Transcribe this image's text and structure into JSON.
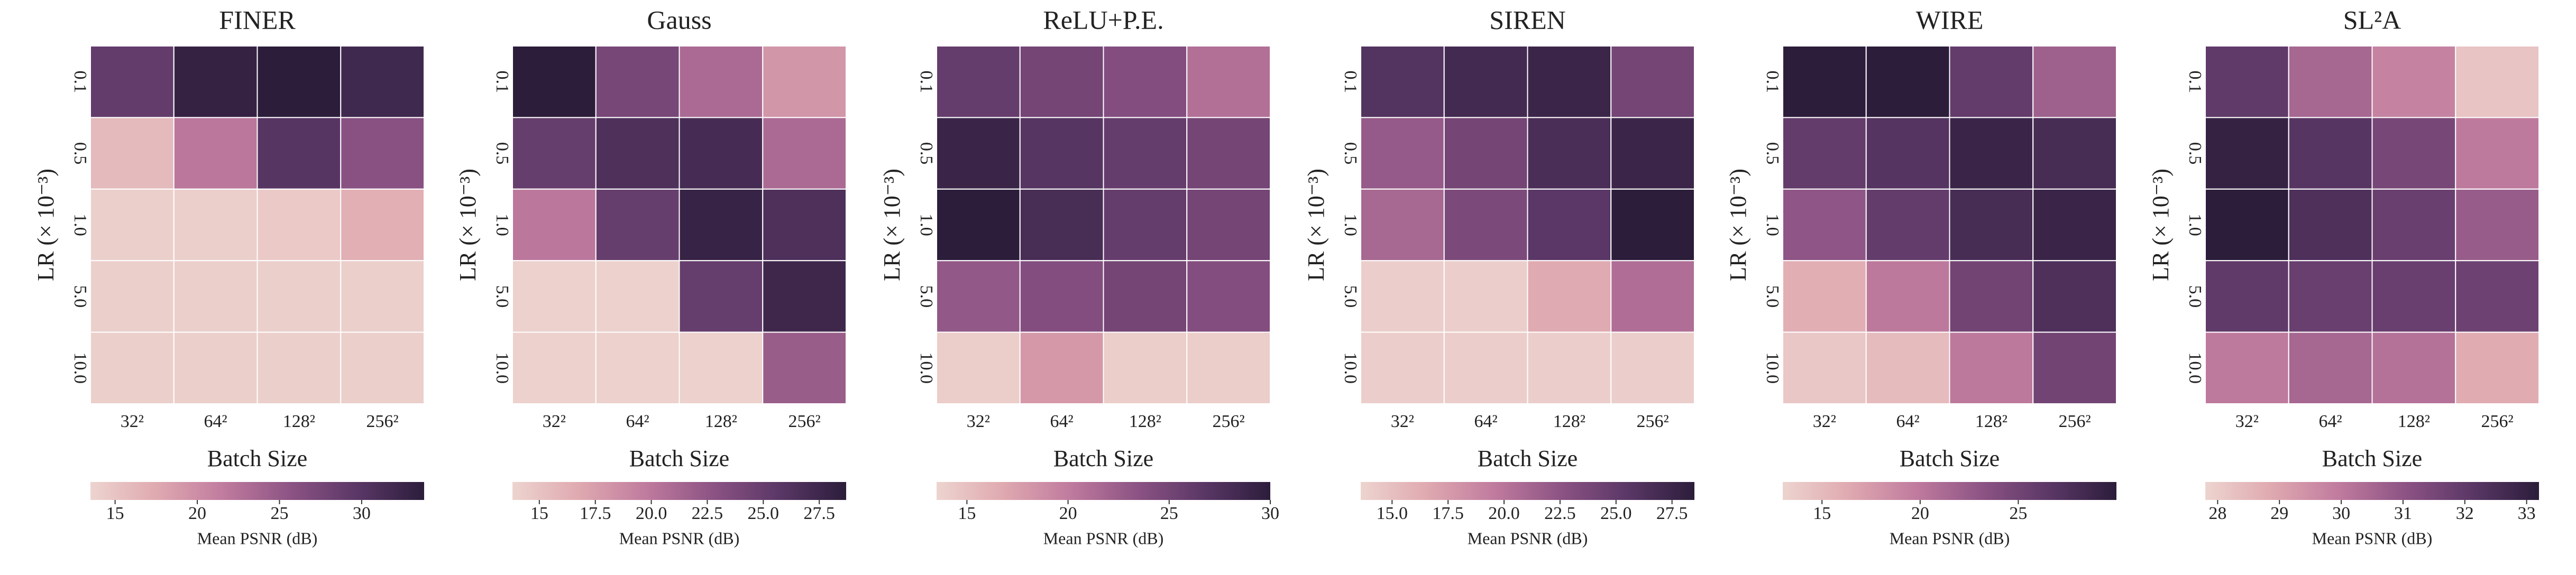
{
  "chart_data": [
    {
      "type": "heatmap",
      "title": "FINER",
      "xlabel": "Batch Size",
      "ylabel": "LR (× 10⁻³)",
      "x": [
        "32²",
        "64²",
        "128²",
        "256²"
      ],
      "y": [
        "0.1",
        "0.5",
        "1.0",
        "5.0",
        "10.0"
      ],
      "values": [
        [
          29,
          33,
          34,
          32
        ],
        [
          16,
          22,
          30,
          26
        ],
        [
          14,
          14,
          14.5,
          17
        ],
        [
          14,
          14,
          14,
          14
        ],
        [
          14,
          14,
          14,
          14
        ]
      ],
      "colorbar_label": "Mean PSNR (dB)",
      "clim": [
        13.5,
        33.8
      ],
      "cticks": [
        15,
        20,
        25,
        30
      ],
      "colormap": [
        "#edd4cf",
        "#dfa9b0",
        "#c07b9e",
        "#8c5384",
        "#5a3766",
        "#2c1d3b"
      ]
    },
    {
      "type": "heatmap",
      "title": "Gauss",
      "xlabel": "Batch Size",
      "ylabel": "LR (× 10⁻³)",
      "x": [
        "32²",
        "64²",
        "128²",
        "256²"
      ],
      "y": [
        "0.1",
        "0.5",
        "1.0",
        "5.0",
        "10.0"
      ],
      "values": [
        [
          28.7,
          24,
          21,
          18
        ],
        [
          25,
          26.5,
          27,
          21
        ],
        [
          20,
          25,
          28,
          26.5
        ],
        [
          14,
          14,
          25,
          27.5
        ],
        [
          14,
          14,
          14,
          22
        ]
      ],
      "colorbar_label": "Mean PSNR (dB)",
      "clim": [
        13.8,
        28.7
      ],
      "cticks": [
        15.0,
        {
          "value": 17.5,
          "label": "17.5"
        },
        {
          "value": 20,
          "label": "20.0"
        },
        {
          "value": 22.5,
          "label": "22.5"
        },
        {
          "value": 25,
          "label": "25.0"
        },
        {
          "value": 27.5,
          "label": "27.5"
        }
      ],
      "colormap": [
        "#edd4cf",
        "#dfa9b0",
        "#c07b9e",
        "#8c5384",
        "#5a3766",
        "#2c1d3b"
      ]
    },
    {
      "type": "heatmap",
      "title": "ReLU+P.E.",
      "xlabel": "Batch Size",
      "ylabel": "LR (× 10⁻³)",
      "x": [
        "32²",
        "64²",
        "128²",
        "256²"
      ],
      "y": [
        "0.1",
        "0.5",
        "1.0",
        "5.0",
        "10.0"
      ],
      "values": [
        [
          26,
          25,
          24,
          21
        ],
        [
          29,
          27,
          26,
          25
        ],
        [
          30,
          28,
          26,
          25
        ],
        [
          23,
          24,
          25,
          24
        ],
        [
          14,
          18,
          14,
          14
        ]
      ],
      "colorbar_label": "Mean PSNR (dB)",
      "clim": [
        13.5,
        30
      ],
      "cticks": [
        15,
        20,
        25,
        30
      ],
      "colormap": [
        "#edd4cf",
        "#dfa9b0",
        "#c07b9e",
        "#8c5384",
        "#5a3766",
        "#2c1d3b"
      ]
    },
    {
      "type": "heatmap",
      "title": "SIREN",
      "xlabel": "Batch Size",
      "ylabel": "LR (× 10⁻³)",
      "x": [
        "32²",
        "64²",
        "128²",
        "256²"
      ],
      "y": [
        "0.1",
        "0.5",
        "1.0",
        "5.0",
        "10.0"
      ],
      "values": [
        [
          26,
          27,
          27.5,
          24
        ],
        [
          22,
          24,
          26.5,
          27.5
        ],
        [
          21,
          23.5,
          25.5,
          28.5
        ],
        [
          14,
          14,
          16.5,
          20.5
        ],
        [
          14,
          14,
          14,
          14
        ]
      ],
      "colorbar_label": "Mean PSNR (dB)",
      "clim": [
        13.6,
        28.5
      ],
      "cticks": [
        {
          "value": 15,
          "label": "15.0"
        },
        17.5,
        {
          "value": 20,
          "label": "20.0"
        },
        22.5,
        {
          "value": 25,
          "label": "25.0"
        },
        27.5
      ],
      "colormap": [
        "#edd4cf",
        "#dfa9b0",
        "#c07b9e",
        "#8c5384",
        "#5a3766",
        "#2c1d3b"
      ]
    },
    {
      "type": "heatmap",
      "title": "WIRE",
      "xlabel": "Batch Size",
      "ylabel": "LR (× 10⁻³)",
      "x": [
        "32²",
        "64²",
        "128²",
        "256²"
      ],
      "y": [
        "0.1",
        "0.5",
        "1.0",
        "5.0",
        "10.0"
      ],
      "values": [
        [
          30,
          30,
          26,
          22
        ],
        [
          26,
          27,
          29,
          28
        ],
        [
          23,
          26,
          28,
          29
        ],
        [
          16,
          20,
          25,
          27.5
        ],
        [
          14,
          15,
          20,
          25
        ]
      ],
      "colorbar_label": "Mean PSNR (dB)",
      "clim": [
        13,
        30
      ],
      "cticks": [
        15,
        20,
        25
      ],
      "colormap": [
        "#edd4cf",
        "#dfa9b0",
        "#c07b9e",
        "#8c5384",
        "#5a3766",
        "#2c1d3b"
      ]
    },
    {
      "type": "heatmap",
      "title": "SL²A",
      "xlabel": "Batch Size",
      "ylabel": "LR (× 10⁻³)",
      "x": [
        "32²",
        "64²",
        "128²",
        "256²"
      ],
      "y": [
        "0.1",
        "0.5",
        "1.0",
        "5.0",
        "10.0"
      ],
      "values": [
        [
          32,
          30.5,
          29.8,
          28.2
        ],
        [
          33,
          32.2,
          31.5,
          30
        ],
        [
          33.2,
          32.4,
          31.8,
          30.8
        ],
        [
          32,
          31.8,
          31.8,
          31.7
        ],
        [
          30,
          30.5,
          30.2,
          28.8
        ]
      ],
      "colorbar_label": "Mean PSNR (dB)",
      "clim": [
        27.8,
        33.2
      ],
      "cticks": [
        28,
        29,
        30,
        31,
        32,
        33
      ],
      "colormap": [
        "#edd4cf",
        "#dfa9b0",
        "#c07b9e",
        "#8c5384",
        "#5a3766",
        "#2c1d3b"
      ]
    }
  ]
}
